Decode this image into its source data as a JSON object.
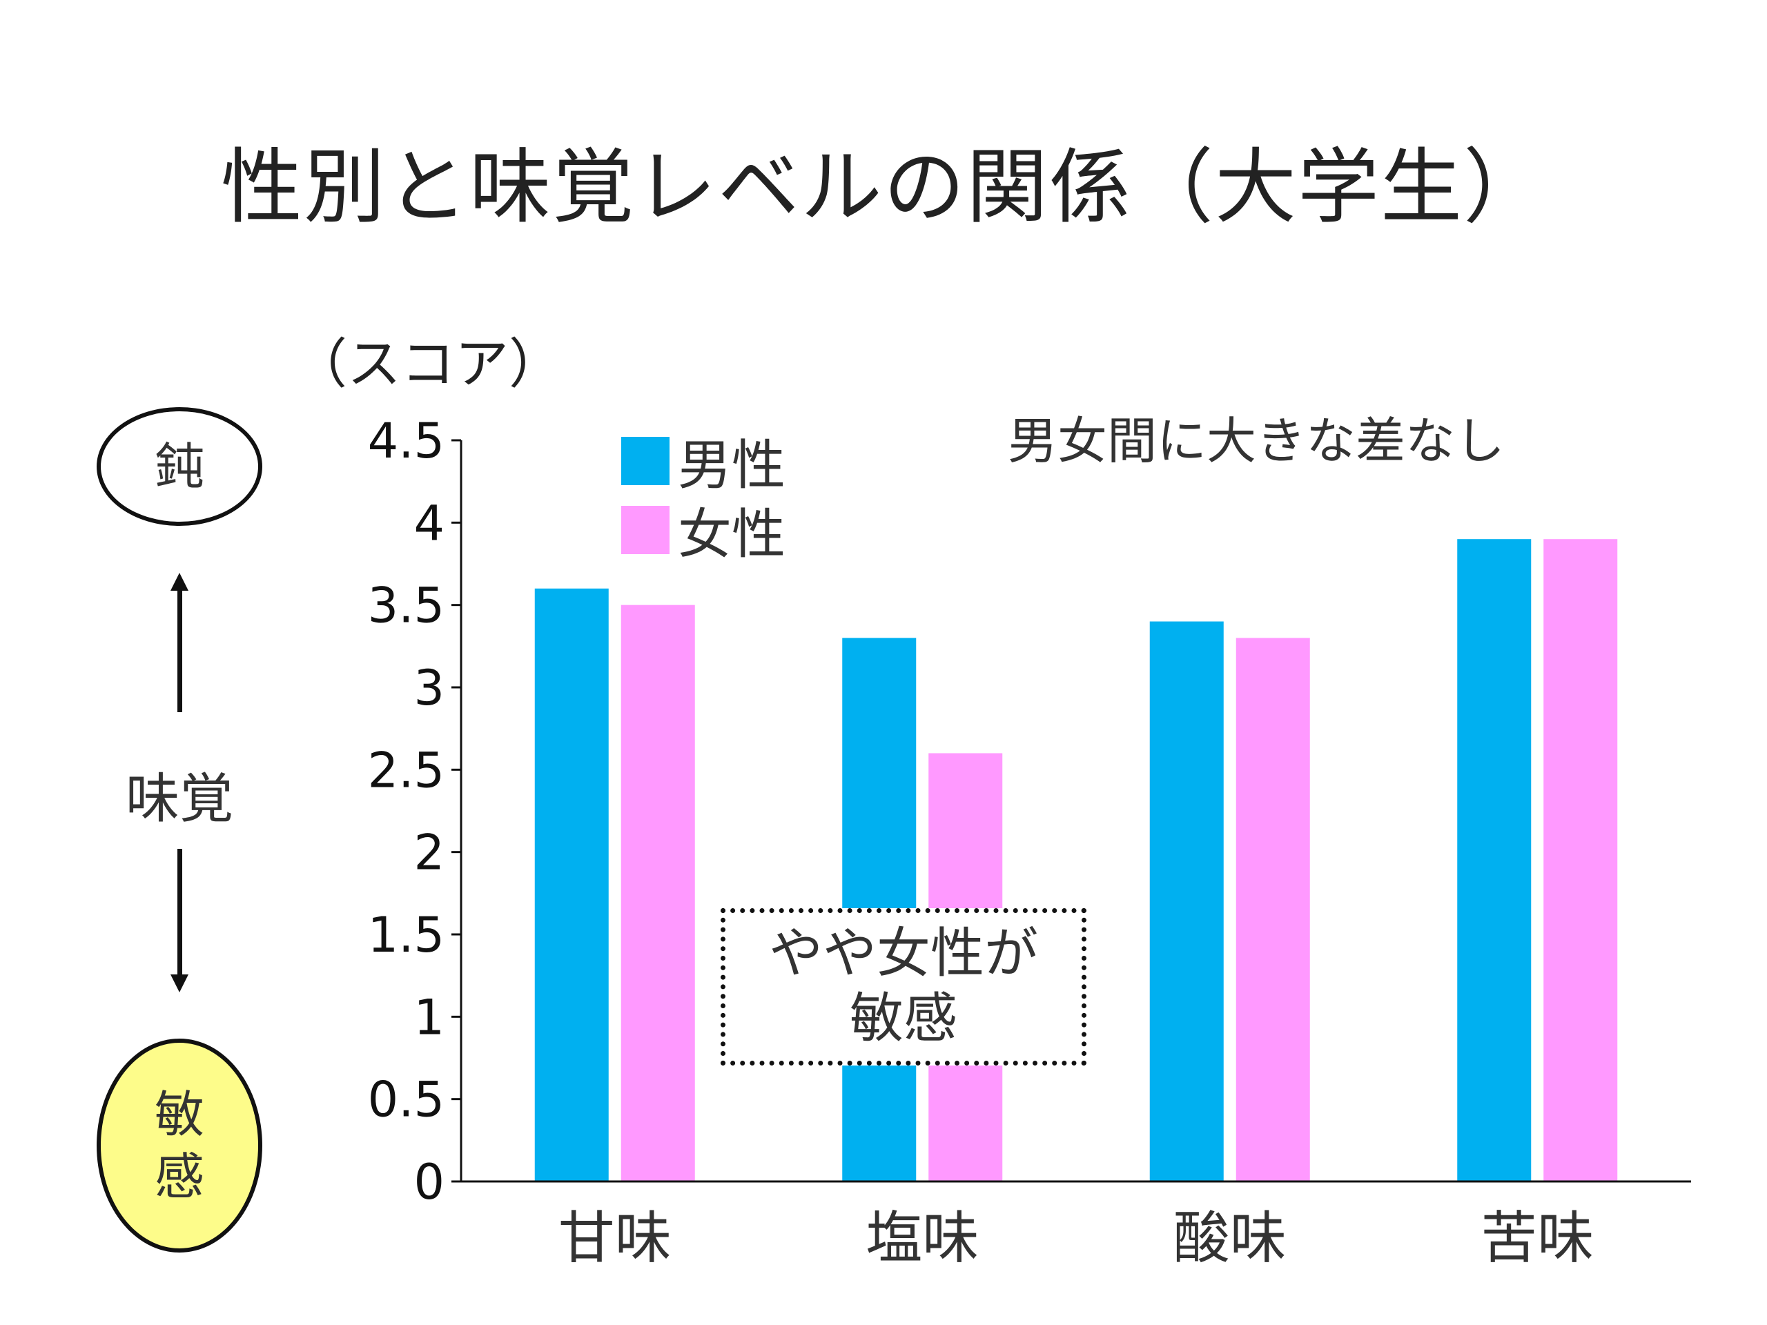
{
  "slide": {
    "title": "性別と味覚レベルの関係（大学生）",
    "unit_label": "（スコア）",
    "note": "男女間に大きな差なし",
    "callout": {
      "line1": "やや女性が",
      "line2": "敏感"
    },
    "scale": {
      "top_label": "鈍",
      "middle_label": "味覚",
      "bottom_line1": "敏",
      "bottom_line2": "感"
    }
  },
  "colors": {
    "male": "#00b0f0",
    "female": "#ff99ff",
    "axis": "#111111",
    "sensitive_fill": "#fdfc8a"
  },
  "chart_data": {
    "type": "bar",
    "title": "性別と味覚レベルの関係（大学生）",
    "ylabel": "（スコア）",
    "xlabel": "",
    "categories": [
      "甘味",
      "塩味",
      "酸味",
      "苦味"
    ],
    "series": [
      {
        "name": "男性",
        "values": [
          3.6,
          3.3,
          3.4,
          3.9
        ]
      },
      {
        "name": "女性",
        "values": [
          3.5,
          2.6,
          3.3,
          3.9
        ]
      }
    ],
    "ylim": [
      0,
      4.5
    ],
    "yticks": [
      0,
      0.5,
      1,
      1.5,
      2,
      2.5,
      3,
      3.5,
      4,
      4.5
    ],
    "ytick_labels": [
      "0",
      "0.5",
      "1",
      "1.5",
      "2",
      "2.5",
      "3",
      "3.5",
      "4",
      "4.5"
    ],
    "legend_position": "top-left",
    "grid": false
  }
}
